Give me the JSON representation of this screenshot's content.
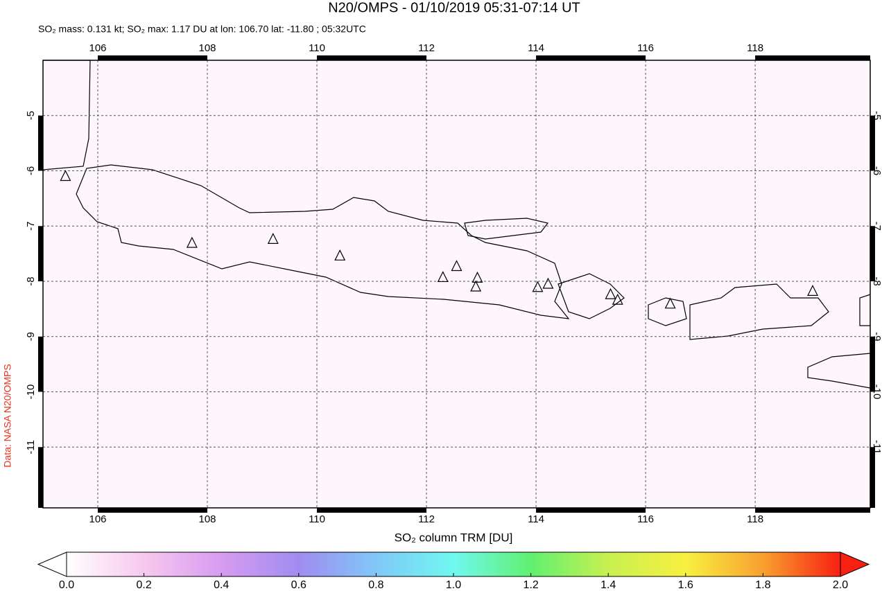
{
  "chart_data": {
    "type": "map",
    "title": "N20/OMPS - 01/10/2019 05:31-07:14 UT",
    "subtitle": "SO₂ mass: 0.131 kt; SO₂ max: 1.17 DU at lon: 106.70 lat: -11.80 ; 05:32UTC",
    "credit": "Data: NASA N20/OMPS",
    "xlim": [
      105,
      120.1
    ],
    "ylim": [
      -12.1,
      -4
    ],
    "xticks": [
      106,
      108,
      110,
      112,
      114,
      116,
      118
    ],
    "yticks": [
      -5,
      -6,
      -7,
      -8,
      -9,
      -10,
      -11
    ],
    "grid": true,
    "volcanoes": {
      "lon": [
        105.41,
        107.72,
        109.2,
        110.42,
        112.3,
        112.55,
        112.93,
        112.9,
        114.03,
        114.22,
        115.36,
        115.49,
        116.45,
        119.05
      ],
      "lat": [
        -6.1,
        -7.31,
        -7.24,
        -7.54,
        -7.93,
        -7.73,
        -7.94,
        -8.1,
        -8.11,
        -8.05,
        -8.24,
        -8.34,
        -8.41,
        -8.18
      ]
    },
    "colorbar": {
      "label": "SO₂ column TRM [DU]",
      "lim": [
        0,
        2
      ],
      "ticks": [
        {
          "value": 0,
          "label": "0.0"
        },
        0.2,
        0.4,
        0.6,
        0.8,
        {
          "value": 1,
          "label": "1.0"
        },
        1.2,
        1.4,
        1.6,
        1.8,
        {
          "value": 2,
          "label": "2.0"
        }
      ],
      "colors": [
        "#ffffff",
        "#f7c8ef",
        "#d79cf0",
        "#a08cf0",
        "#80c8f8",
        "#70f8f0",
        "#60f070",
        "#c8f050",
        "#f8f040",
        "#f8a030",
        "#f82010"
      ]
    }
  }
}
